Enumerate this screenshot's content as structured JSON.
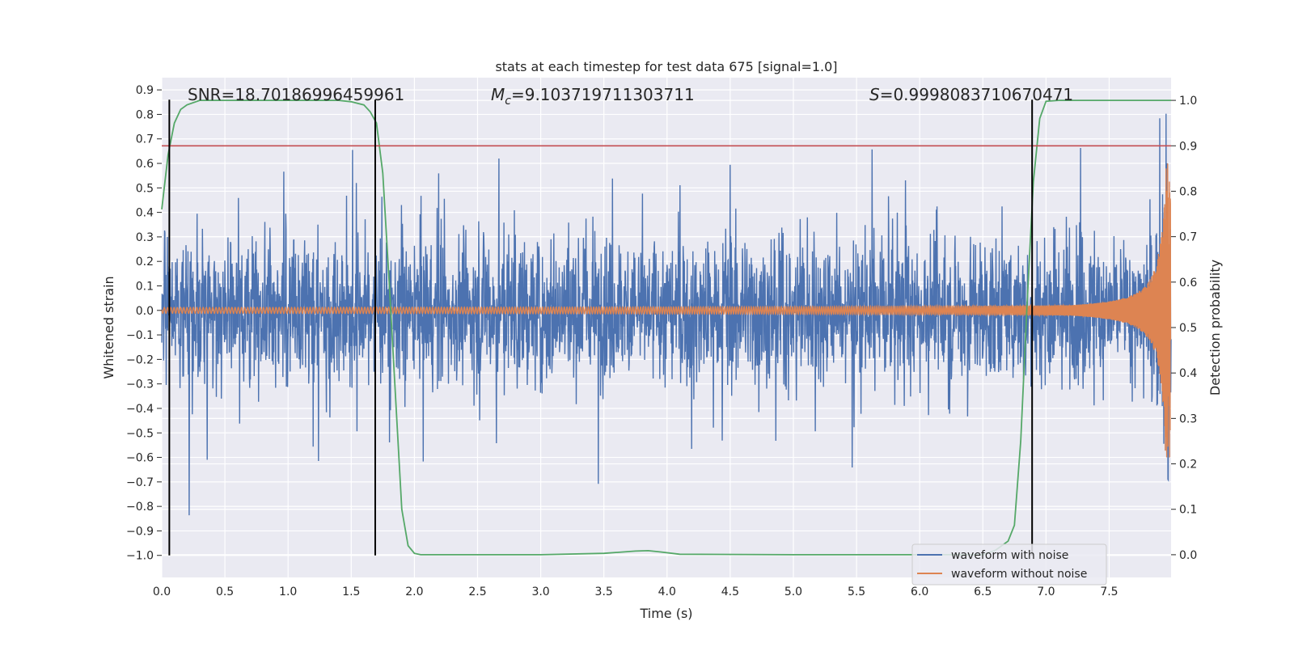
{
  "chart_data": {
    "type": "line",
    "title": "stats at each timestep for test data 675 [signal=1.0]",
    "xlabel": "Time (s)",
    "ylabel": "Whitened strain",
    "ylabel_right": "Detection probability",
    "xlim": [
      0.0,
      7.99
    ],
    "ylim": [
      -1.09,
      0.95
    ],
    "ylim_right": [
      -0.05,
      1.05
    ],
    "xticks": [
      0.0,
      0.5,
      1.0,
      1.5,
      2.0,
      2.5,
      3.0,
      3.5,
      4.0,
      4.5,
      5.0,
      5.5,
      6.0,
      6.5,
      7.0,
      7.5
    ],
    "xtick_labels": [
      "0.0",
      "0.5",
      "1.0",
      "1.5",
      "2.0",
      "2.5",
      "3.0",
      "3.5",
      "4.0",
      "4.5",
      "5.0",
      "5.5",
      "6.0",
      "6.5",
      "7.0",
      "7.5"
    ],
    "yticks": [
      0.9,
      0.8,
      0.7,
      0.6,
      0.5,
      0.4,
      0.3,
      0.2,
      0.1,
      0.0,
      -0.1,
      -0.2,
      -0.3,
      -0.4,
      -0.5,
      -0.6,
      -0.7,
      -0.8,
      -0.9,
      -1.0
    ],
    "ytick_labels": [
      "0.9",
      "0.8",
      "0.7",
      "0.6",
      "0.5",
      "0.4",
      "0.3",
      "0.2",
      "0.1",
      "0.0",
      "−0.1",
      "−0.2",
      "−0.3",
      "−0.4",
      "−0.5",
      "−0.6",
      "−0.7",
      "−0.8",
      "−0.9",
      "−1.0"
    ],
    "yticks_right": [
      1.0,
      0.9,
      0.8,
      0.7,
      0.6,
      0.5,
      0.4,
      0.3,
      0.2,
      0.1,
      0.0
    ],
    "ytick_labels_right": [
      "1.0",
      "0.9",
      "0.8",
      "0.7",
      "0.6",
      "0.5",
      "0.4",
      "0.3",
      "0.2",
      "0.1",
      "0.0"
    ],
    "grid": true,
    "annotations": {
      "snr": "SNR=18.70186996459961",
      "mc_symbol": "M",
      "mc_sub": "c",
      "mc_value": "=9.103719711303711",
      "s_symbol": "S",
      "s_value": "=0.9998083710670471"
    },
    "vertical_lines_x": [
      0.06,
      1.69,
      6.89
    ],
    "threshold_probability": 0.9,
    "probability_curve": {
      "x": [
        0.0,
        0.05,
        0.1,
        0.15,
        0.2,
        0.3,
        0.4,
        0.6,
        1.0,
        1.4,
        1.5,
        1.6,
        1.65,
        1.7,
        1.75,
        1.8,
        1.9,
        1.95,
        2.0,
        2.05,
        2.2,
        3.0,
        3.5,
        3.75,
        3.85,
        3.95,
        4.1,
        5.0,
        6.0,
        6.5,
        6.6,
        6.7,
        6.75,
        6.8,
        6.85,
        6.9,
        6.95,
        7.0,
        7.1,
        7.99
      ],
      "y": [
        0.76,
        0.88,
        0.95,
        0.98,
        0.99,
        1.0,
        1.0,
        1.0,
        1.0,
        1.0,
        0.997,
        0.99,
        0.975,
        0.95,
        0.84,
        0.6,
        0.1,
        0.02,
        0.003,
        0.0,
        0.0,
        0.0,
        0.003,
        0.008,
        0.009,
        0.006,
        0.001,
        0.0,
        0.0,
        0.0,
        0.01,
        0.03,
        0.065,
        0.25,
        0.55,
        0.82,
        0.96,
        0.998,
        1.0,
        1.0
      ]
    },
    "noisy_series_description_none": "",
    "legend": {
      "position": "lower-right",
      "entries": [
        {
          "name": "waveform with noise",
          "color": "#4c72b0"
        },
        {
          "name": "waveform without noise",
          "color": "#dd8452"
        }
      ]
    },
    "colors": {
      "noise": "#4c72b0",
      "clean": "#dd8452",
      "probability": "#55a868",
      "threshold": "#c44e52",
      "vline": "#000000",
      "background": "#eaeaf2",
      "grid": "#ffffff"
    }
  }
}
